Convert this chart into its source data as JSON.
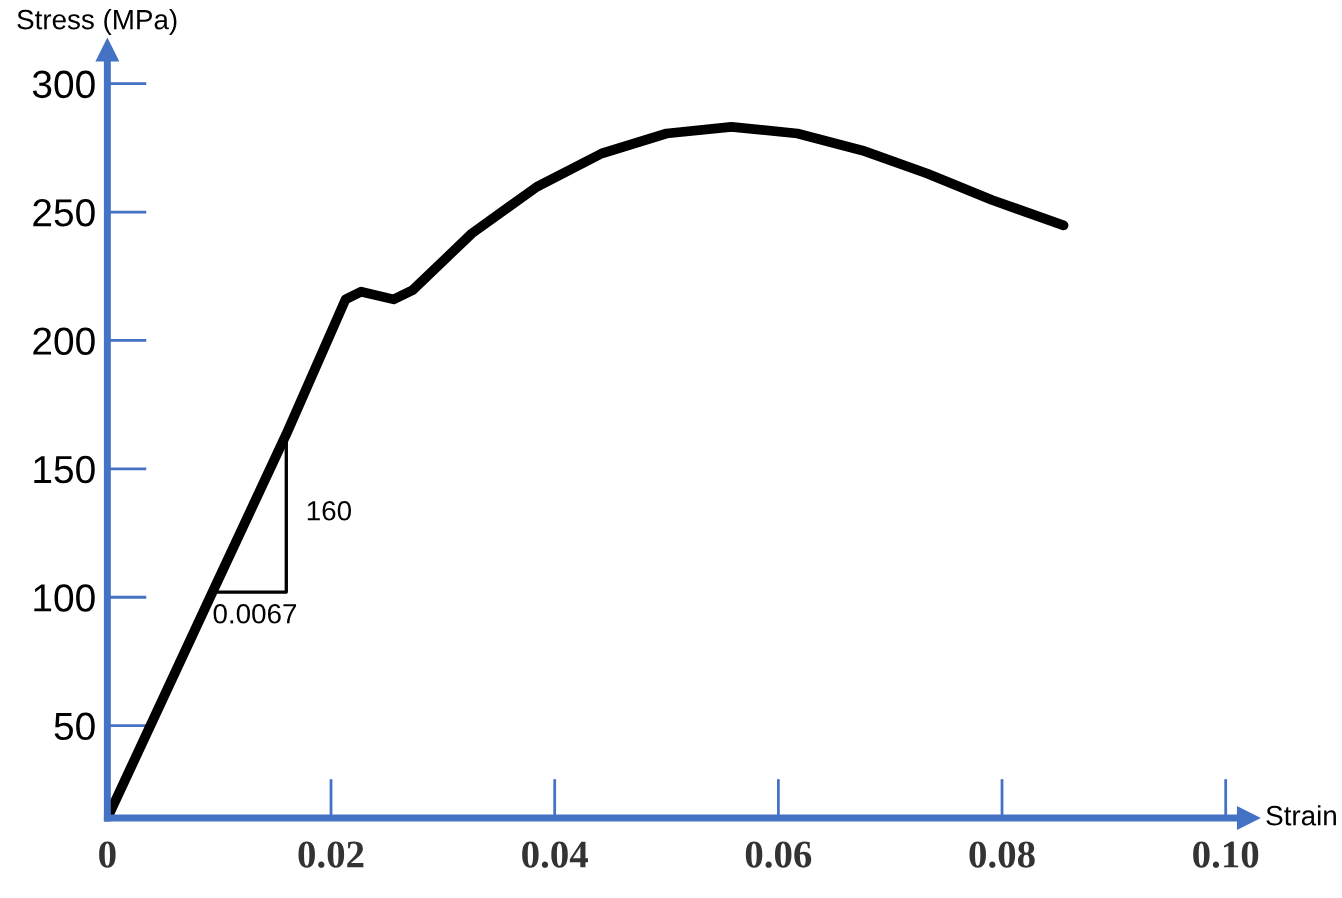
{
  "chart_data": {
    "type": "line",
    "xlabel": "Strain",
    "ylabel": "Stress (MPa)",
    "x": [
      0,
      0.0094,
      0.016,
      0.0213,
      0.0227,
      0.0256,
      0.0273,
      0.0326,
      0.0384,
      0.0442,
      0.05,
      0.0558,
      0.0617,
      0.0675,
      0.0733,
      0.0791,
      0.0855
    ],
    "series": [
      {
        "color": "#000000",
        "values": [
          14,
          102,
          163.5,
          216,
          219,
          216,
          219.6,
          241.7,
          259.8,
          272.8,
          280.6,
          283.2,
          280.6,
          274,
          265,
          254.7,
          244.8
        ]
      }
    ],
    "xlim": [
      0,
      0.102
    ],
    "ylim": [
      14,
      313
    ],
    "xticks": [
      0,
      0.02,
      0.04,
      0.06,
      0.08,
      {
        "value": 0.1,
        "label": "0.10"
      }
    ],
    "yticks": [
      50,
      100,
      150,
      200,
      250,
      300
    ],
    "annotations": [
      {
        "text": "0.0067",
        "x": 0.0094,
        "y": 102
      },
      {
        "text": "160",
        "x": 0.016,
        "y": 163.5
      }
    ],
    "grid": false,
    "legend": false,
    "marker": "none",
    "line_style": "solid"
  }
}
